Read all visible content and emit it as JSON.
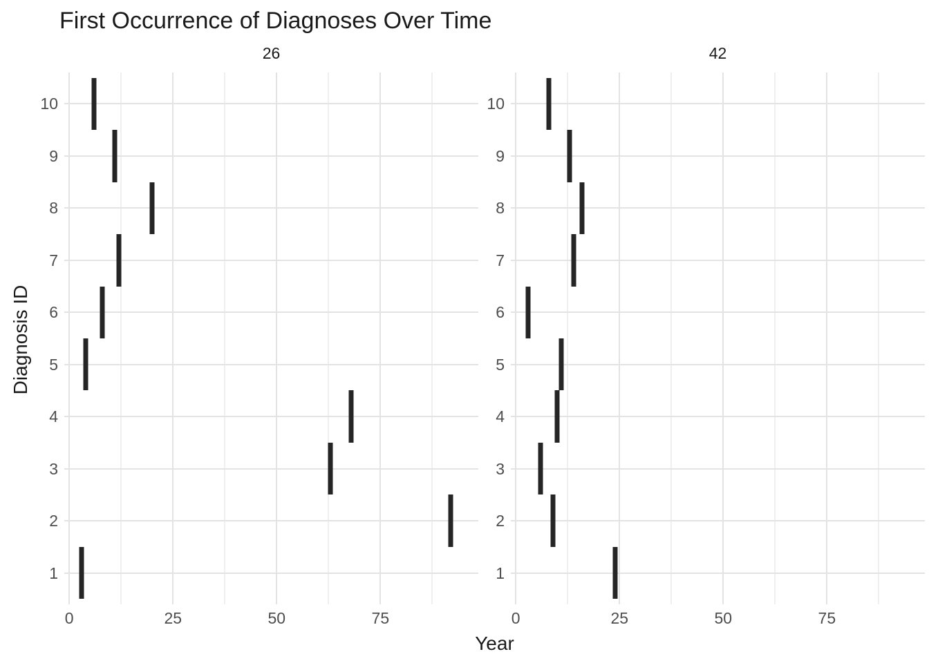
{
  "chart_data": {
    "type": "scatter",
    "mark_style": "vertical-tick-segment",
    "title": "First Occurrence of Diagnoses Over Time",
    "xlabel": "Year",
    "ylabel": "Diagnosis ID",
    "legend": "none",
    "grid": "major-x, minor-x, major-y",
    "x_ticks": [
      0,
      25,
      50,
      75
    ],
    "x_minor_ticks": [
      12.5,
      37.5,
      62.5,
      87.5
    ],
    "xlim": [
      -1.2,
      98.6
    ],
    "y_ticks": [
      10,
      9,
      8,
      7,
      6,
      5,
      4,
      3,
      2,
      1
    ],
    "ylim": [
      0.4,
      10.6
    ],
    "mark_height_units": 1,
    "facets": [
      {
        "label": "26",
        "points": [
          {
            "id": 1,
            "year": 3
          },
          {
            "id": 2,
            "year": 92
          },
          {
            "id": 3,
            "year": 63
          },
          {
            "id": 4,
            "year": 68
          },
          {
            "id": 5,
            "year": 4
          },
          {
            "id": 6,
            "year": 8
          },
          {
            "id": 7,
            "year": 12
          },
          {
            "id": 8,
            "year": 20
          },
          {
            "id": 9,
            "year": 11
          },
          {
            "id": 10,
            "year": 6
          }
        ]
      },
      {
        "label": "42",
        "points": [
          {
            "id": 1,
            "year": 24
          },
          {
            "id": 2,
            "year": 9
          },
          {
            "id": 3,
            "year": 6
          },
          {
            "id": 4,
            "year": 10
          },
          {
            "id": 5,
            "year": 11
          },
          {
            "id": 6,
            "year": 3
          },
          {
            "id": 7,
            "year": 14
          },
          {
            "id": 8,
            "year": 16
          },
          {
            "id": 9,
            "year": 13
          },
          {
            "id": 10,
            "year": 8
          }
        ]
      }
    ],
    "colors": {
      "mark": "#252525",
      "grid_major": "#e3e3e3",
      "grid_minor": "#efefef",
      "title_text": "#1a1a1a",
      "tick_text": "#4d4d4d",
      "background": "#ffffff"
    }
  }
}
